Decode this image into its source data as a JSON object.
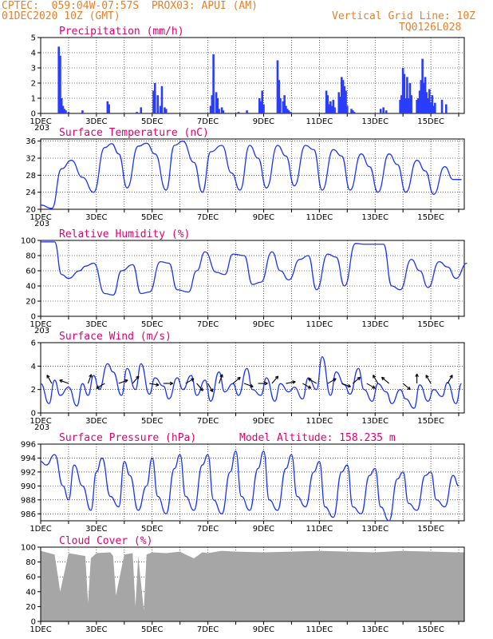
{
  "header": {
    "left_line1": "CPTEC:  059:04W-07:57S  PROX03: APUI (AM)",
    "left_line2": "01DEC2020 10Z (GMT)",
    "right_line2": "Vertical Grid Line: 10Z",
    "right_line3": "TQ0126L028"
  },
  "colors": {
    "line": "#1a33ff",
    "bar": "#2a3cff",
    "cloud": "#a6a6a6",
    "title": "#e0006f",
    "header": "#e8802a"
  },
  "x_labels": [
    "1DEC",
    "3DEC",
    "5DEC",
    "7DEC",
    "9DEC",
    "11DEC",
    "13DEC",
    "15DEC"
  ],
  "x_labels_extra": [
    "203",
    "203",
    "203",
    "203"
  ],
  "panels": {
    "precip": {
      "title": "Precipitation (mm/h)",
      "yticks": [
        "5",
        "4",
        "3",
        "2",
        "1",
        "0"
      ]
    },
    "temp": {
      "title": "Surface Temperature (nC)",
      "yticks": [
        "36",
        "32",
        "28",
        "24",
        "20"
      ]
    },
    "rh": {
      "title": "Relative Humidity (%)",
      "yticks": [
        "100",
        "80",
        "60",
        "40",
        "20",
        "0"
      ]
    },
    "wind": {
      "title": "Surface Wind (m/s)",
      "yticks": [
        "6",
        "4",
        "2",
        "0"
      ]
    },
    "press": {
      "title": "Surface Pressure (hPa)",
      "subtitle": "Model Altitude: 158.235 m",
      "yticks": [
        "996",
        "994",
        "992",
        "990",
        "988",
        "986"
      ]
    },
    "cloud": {
      "title": "Cloud Cover (%)",
      "yticks": [
        "100",
        "80",
        "60",
        "40",
        "20",
        "0"
      ]
    }
  },
  "chart_data": [
    {
      "type": "bar",
      "ylabel": "Precipitation (mm/h)",
      "ylim": [
        0,
        5
      ],
      "x_days": [
        0.65,
        0.7,
        0.75,
        0.8,
        0.85,
        0.9,
        1.0,
        1.5,
        2.4,
        2.45,
        3.45,
        3.6,
        4.05,
        4.1,
        4.2,
        4.3,
        4.35,
        4.45,
        4.5,
        6.1,
        6.15,
        6.2,
        6.3,
        6.35,
        6.4,
        6.5,
        6.55,
        7.1,
        7.4,
        7.85,
        7.9,
        7.95,
        8.0,
        8.5,
        8.55,
        8.6,
        8.7,
        8.75,
        8.8,
        8.85,
        8.9,
        8.95,
        10.25,
        10.3,
        10.35,
        10.4,
        10.45,
        10.5,
        10.55,
        10.7,
        10.75,
        10.8,
        10.85,
        10.9,
        10.95,
        11.0,
        11.15,
        11.2,
        11.25,
        12.2,
        12.3,
        12.4,
        12.9,
        12.95,
        13.0,
        13.05,
        13.1,
        13.15,
        13.2,
        13.25,
        13.3,
        13.5,
        13.55,
        13.6,
        13.65,
        13.7,
        13.75,
        13.8,
        13.85,
        13.9,
        13.95,
        14.0,
        14.05,
        14.1,
        14.15,
        14.4,
        14.55
      ],
      "values": [
        4.4,
        3.8,
        1.0,
        0.5,
        0.3,
        0.2,
        0.1,
        0.2,
        0.8,
        0.6,
        0.1,
        0.4,
        1.5,
        2.0,
        1.2,
        0.5,
        1.8,
        0.4,
        0.3,
        0.5,
        1.2,
        3.9,
        1.4,
        1.0,
        0.3,
        0.4,
        0.2,
        0.1,
        0.2,
        1.0,
        0.8,
        1.5,
        0.6,
        3.5,
        2.2,
        1.0,
        0.8,
        1.2,
        0.5,
        0.3,
        0.2,
        0.1,
        1.5,
        1.2,
        0.6,
        0.8,
        0.5,
        0.9,
        0.4,
        1.4,
        1.1,
        2.4,
        2.2,
        1.8,
        1.5,
        0.5,
        0.3,
        0.2,
        0.1,
        0.3,
        0.4,
        0.2,
        0.9,
        1.2,
        3.0,
        2.6,
        1.0,
        2.4,
        1.0,
        2.0,
        1.2,
        0.9,
        1.0,
        1.5,
        2.2,
        3.6,
        2.0,
        2.4,
        1.4,
        1.0,
        1.6,
        0.7,
        1.2,
        0.5,
        0.7,
        0.9,
        0.6
      ]
    },
    {
      "type": "line",
      "ylabel": "Surface Temperature (nC)",
      "ylim": [
        20,
        36.5
      ],
      "x_days": [
        0,
        0.4,
        0.75,
        1.1,
        1.5,
        1.9,
        2.3,
        2.55,
        2.8,
        3.1,
        3.5,
        3.8,
        4.1,
        4.5,
        4.8,
        5.1,
        5.5,
        5.8,
        6.1,
        6.5,
        6.85,
        7.15,
        7.5,
        7.8,
        8.1,
        8.5,
        8.8,
        9.1,
        9.5,
        9.8,
        10.1,
        10.5,
        10.8,
        11.1,
        11.5,
        11.8,
        12.1,
        12.5,
        12.8,
        13.1,
        13.5,
        13.8,
        14.1,
        14.5,
        14.8,
        15.1
      ],
      "values": [
        21.0,
        20.2,
        29.5,
        31.5,
        27.5,
        24.0,
        34.5,
        35.4,
        33.0,
        25.0,
        34.8,
        35.5,
        33.0,
        24.5,
        35.0,
        36.0,
        31.0,
        24.0,
        33.5,
        35.0,
        28.5,
        24.5,
        35.0,
        32.0,
        25.0,
        35.0,
        32.5,
        25.5,
        35.0,
        34.0,
        24.5,
        34.0,
        32.5,
        24.5,
        33.0,
        30.0,
        24.0,
        33.0,
        30.5,
        24.0,
        31.5,
        29.0,
        23.5,
        30.0,
        27.0,
        27.0
      ]
    },
    {
      "type": "line",
      "ylabel": "Relative Humidity (%)",
      "ylim": [
        0,
        100
      ],
      "x_days": [
        0,
        0.5,
        0.75,
        1.0,
        1.4,
        1.6,
        1.9,
        2.3,
        2.6,
        2.9,
        3.3,
        3.6,
        3.9,
        4.3,
        4.6,
        4.9,
        5.3,
        5.6,
        5.9,
        6.3,
        6.6,
        6.9,
        7.3,
        7.6,
        7.9,
        8.3,
        8.6,
        8.9,
        9.3,
        9.6,
        9.9,
        10.3,
        10.6,
        10.9,
        11.3,
        11.6,
        11.9,
        12.3,
        12.6,
        12.9,
        13.3,
        13.6,
        13.9,
        14.3,
        14.6,
        14.9,
        15.3
      ],
      "values": [
        98,
        98,
        55,
        50,
        60,
        66,
        70,
        30,
        28,
        60,
        68,
        30,
        32,
        72,
        70,
        35,
        32,
        60,
        85,
        58,
        55,
        82,
        80,
        42,
        45,
        85,
        60,
        48,
        75,
        80,
        35,
        82,
        78,
        40,
        96,
        95,
        95,
        95,
        40,
        35,
        75,
        60,
        38,
        72,
        65,
        50,
        70
      ]
    },
    {
      "type": "line",
      "ylabel": "Surface Wind (m/s)",
      "ylim": [
        0,
        6
      ],
      "x_days": [
        0,
        0.3,
        0.5,
        0.7,
        1.0,
        1.3,
        1.5,
        1.7,
        1.9,
        2.1,
        2.4,
        2.6,
        2.9,
        3.1,
        3.4,
        3.6,
        3.9,
        4.1,
        4.4,
        4.6,
        4.9,
        5.1,
        5.4,
        5.6,
        5.9,
        6.1,
        6.4,
        6.6,
        6.9,
        7.1,
        7.4,
        7.6,
        7.9,
        8.1,
        8.4,
        8.6,
        8.9,
        9.1,
        9.4,
        9.6,
        9.9,
        10.1,
        10.4,
        10.6,
        10.9,
        11.1,
        11.4,
        11.6,
        11.9,
        12.1,
        12.4,
        12.6,
        12.9,
        13.1,
        13.4,
        13.6,
        13.9,
        14.1,
        14.4,
        14.6,
        14.9,
        15.1
      ],
      "values": [
        2.5,
        0.8,
        2.8,
        1.5,
        2.2,
        0.6,
        2.5,
        1.5,
        3.2,
        2.0,
        4.2,
        3.5,
        1.5,
        3.8,
        2.0,
        4.2,
        1.6,
        3.0,
        2.3,
        1.2,
        3.0,
        2.0,
        3.2,
        1.5,
        2.8,
        1.0,
        3.5,
        1.8,
        2.5,
        1.5,
        3.8,
        2.0,
        1.5,
        3.0,
        1.0,
        2.5,
        1.8,
        2.2,
        1.2,
        3.0,
        2.0,
        4.8,
        1.5,
        3.5,
        2.4,
        1.6,
        3.8,
        2.0,
        1.0,
        2.5,
        1.8,
        0.8,
        2.0,
        1.2,
        0.4,
        2.4,
        1.0,
        2.0,
        1.4,
        2.6,
        0.8,
        2.5
      ]
    },
    {
      "type": "line",
      "ylabel": "Surface Pressure (hPa)",
      "ylim": [
        985,
        996
      ],
      "x_days": [
        0,
        0.2,
        0.5,
        0.8,
        1.0,
        1.2,
        1.5,
        1.8,
        2.0,
        2.2,
        2.5,
        2.8,
        3.0,
        3.2,
        3.5,
        3.8,
        4.0,
        4.2,
        4.5,
        4.8,
        5.0,
        5.2,
        5.5,
        5.8,
        6.0,
        6.2,
        6.5,
        6.8,
        7.0,
        7.2,
        7.5,
        7.8,
        8.0,
        8.2,
        8.5,
        8.8,
        9.0,
        9.2,
        9.5,
        9.8,
        10.0,
        10.2,
        10.5,
        10.8,
        11.0,
        11.2,
        11.5,
        11.8,
        12.0,
        12.2,
        12.5,
        12.8,
        13.0,
        13.2,
        13.5,
        13.8,
        14.0,
        14.2,
        14.5,
        14.8,
        15.0
      ],
      "values": [
        993.5,
        993.0,
        994.5,
        990.0,
        988.0,
        993.0,
        990.0,
        986.5,
        992.0,
        994.0,
        988.5,
        987.0,
        993.5,
        991.5,
        986.5,
        990.0,
        994.0,
        988.5,
        986.0,
        992.5,
        994.5,
        988.5,
        986.5,
        993.0,
        994.5,
        988.0,
        986.0,
        992.0,
        995.0,
        988.5,
        986.5,
        992.5,
        995.0,
        988.0,
        986.5,
        992.5,
        994.5,
        988.5,
        987.0,
        992.0,
        993.5,
        987.0,
        985.5,
        992.0,
        993.0,
        987.0,
        986.0,
        991.5,
        992.5,
        987.0,
        985.0,
        991.0,
        992.0,
        987.5,
        986.5,
        991.5,
        992.0,
        988.0,
        987.0,
        991.5,
        990.0
      ]
    },
    {
      "type": "area",
      "ylabel": "Cloud Cover (%)",
      "ylim": [
        0,
        100
      ],
      "x_days": [
        0,
        0.5,
        0.7,
        1.0,
        1.3,
        1.6,
        1.7,
        1.8,
        2.0,
        2.5,
        2.6,
        2.7,
        3.0,
        3.3,
        3.4,
        3.5,
        3.7,
        3.8,
        4.0,
        4.5,
        5.0,
        5.2,
        5.5,
        5.8,
        6.0,
        6.5,
        7.0,
        8.0,
        9.0,
        10.0,
        11.0,
        12.0,
        13.0,
        14.0,
        15.0
      ],
      "values": [
        95,
        90,
        40,
        92,
        90,
        88,
        25,
        85,
        92,
        93,
        88,
        35,
        90,
        92,
        20,
        88,
        15,
        90,
        93,
        92,
        94,
        90,
        85,
        93,
        92,
        95,
        94,
        93,
        94,
        95,
        94,
        93,
        95,
        94,
        93
      ]
    }
  ]
}
